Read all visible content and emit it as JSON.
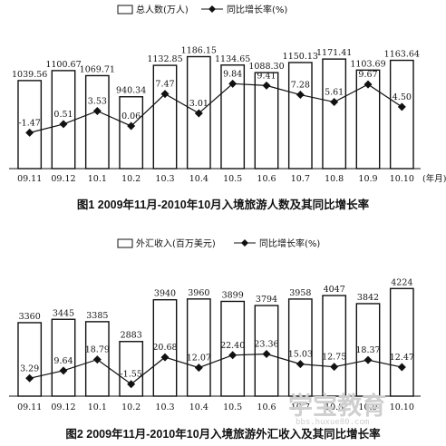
{
  "chart_data": [
    {
      "type": "bar",
      "title": "图1 2009年11月-2010年10月入境旅游人数及其同比增长率",
      "x_unit": "(年月)",
      "categories": [
        "09.11",
        "09.12",
        "10.1",
        "10.2",
        "10.3",
        "10.4",
        "10.5",
        "10.6",
        "10.7",
        "10.8",
        "10.9",
        "10.10"
      ],
      "series": [
        {
          "name": "总人数(万人)",
          "kind": "bar",
          "values": [
            1039.56,
            1100.67,
            1069.71,
            940.34,
            1132.85,
            1186.15,
            1134.65,
            1088.3,
            1150.13,
            1171.41,
            1103.69,
            1163.64
          ],
          "labels": [
            "1039.56",
            "1100.67",
            "1069.71",
            "940.34",
            "1132.85",
            "1186.15",
            "1134.65",
            "1088.30",
            "1150.13",
            "1171.41",
            "1103.69",
            "1163.64"
          ]
        },
        {
          "name": "同比增长率(%)",
          "kind": "line",
          "values": [
            -1.47,
            0.51,
            3.53,
            0.06,
            7.47,
            3.01,
            9.84,
            9.41,
            7.28,
            5.61,
            9.67,
            4.5
          ],
          "labels": [
            "-1.47",
            "0.51",
            "3.53",
            "0.06",
            "7.47",
            "3.01",
            "9.84",
            "9.41",
            "7.28",
            "5.61",
            "9.67",
            "4.50"
          ]
        }
      ],
      "legend": "top-center",
      "grid": false,
      "bar_range": [
        500,
        1200
      ],
      "line_range": [
        -6,
        12
      ]
    },
    {
      "type": "bar",
      "title": "图2 2009年11月-2010年10月入境旅游外汇收入及其同比增长率",
      "x_unit": "",
      "categories": [
        "09.11",
        "09.12",
        "10.1",
        "10.2",
        "10.3",
        "10.4",
        "10.5",
        "10.6",
        "10.7",
        "10.8",
        "10.9",
        "10.10"
      ],
      "series": [
        {
          "name": "外汇收入(百万美元)",
          "kind": "bar",
          "values": [
            3360,
            3445,
            3385,
            2883,
            3940,
            3960,
            3899,
            3794,
            3958,
            4047,
            3842,
            4224
          ],
          "labels": [
            "3360",
            "3445",
            "3385",
            "2883",
            "3940",
            "3960",
            "3899",
            "3794",
            "3958",
            "4047",
            "3842",
            "4224"
          ]
        },
        {
          "name": "同比增长率(%)",
          "kind": "line",
          "values": [
            3.29,
            9.64,
            18.79,
            -1.55,
            20.68,
            12.07,
            22.4,
            23.36,
            15.03,
            12.75,
            18.37,
            12.47
          ],
          "labels": [
            "3.29",
            "9.64",
            "18.79",
            "-1.55",
            "20.68",
            "12.07",
            "22.40",
            "23.36",
            "15.03",
            "12.75",
            "18.37",
            "12.47"
          ]
        }
      ],
      "legend": "top-center",
      "grid": false,
      "bar_range": [
        1500,
        4300
      ],
      "line_range": [
        -10,
        50
      ]
    }
  ],
  "watermark": {
    "brand": "学宝教育",
    "url": "bbs.huxue80.com"
  }
}
